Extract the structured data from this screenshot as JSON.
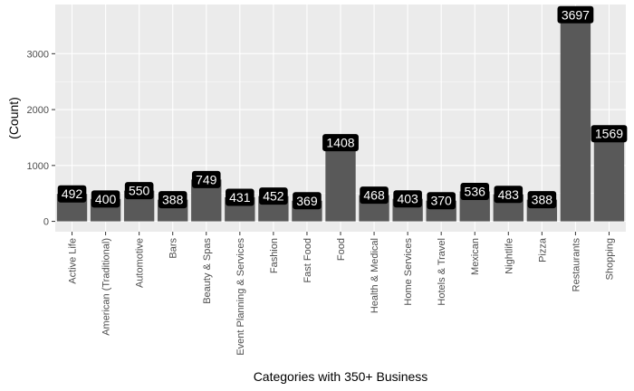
{
  "chart_data": {
    "type": "bar",
    "title": "",
    "xlabel": "Categories with 350+ Business",
    "ylabel": "(Count)",
    "categories": [
      "Active Life",
      "American (Traditional)",
      "Automotive",
      "Bars",
      "Beauty & Spas",
      "Event Planning & Services",
      "Fashion",
      "Fast Food",
      "Food",
      "Health & Medical",
      "Home Services",
      "Hotels & Travel",
      "Mexican",
      "Nightlife",
      "Pizza",
      "Restaurants",
      "Shopping"
    ],
    "values": [
      492,
      400,
      550,
      388,
      749,
      431,
      452,
      369,
      1408,
      468,
      403,
      370,
      536,
      483,
      388,
      3697,
      1569
    ],
    "y_ticks": [
      0,
      1000,
      2000,
      3000
    ],
    "ylim": [
      -185,
      3880
    ],
    "grid": true,
    "legend": "none",
    "colors": {
      "panel_background": "#ebebeb",
      "grid_major": "#ffffff",
      "bar_fill": "#595959",
      "label_background": "#000000",
      "label_text": "#ffffff"
    }
  }
}
